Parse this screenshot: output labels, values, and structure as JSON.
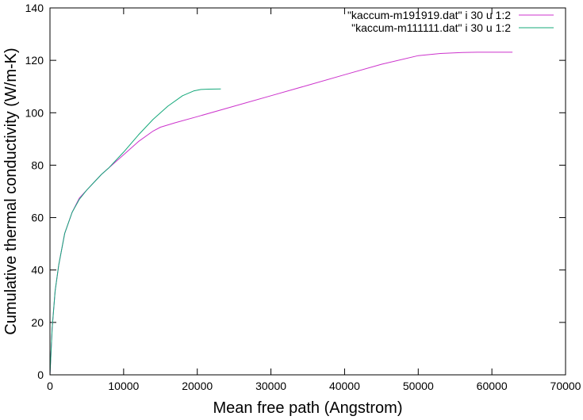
{
  "chart_data": {
    "type": "line",
    "title": "",
    "xlabel": "Mean free path (Angstrom)",
    "ylabel": "Cumulative thermal conductivity (W/m-K)",
    "xlim": [
      0,
      70000
    ],
    "ylim": [
      0,
      140
    ],
    "xticks": [
      0,
      10000,
      20000,
      30000,
      40000,
      50000,
      60000,
      70000
    ],
    "yticks": [
      0,
      20,
      40,
      60,
      80,
      100,
      120,
      140
    ],
    "grid": false,
    "legend_position": "top-right",
    "series": [
      {
        "name": "\"kaccum-m191919.dat\" i 30 u 1:2",
        "color": "#cc33cc",
        "x": [
          0,
          300,
          700,
          1200,
          2000,
          3000,
          4000,
          5000,
          6000,
          7000,
          8000,
          10000,
          12000,
          14000,
          15000,
          17000,
          20000,
          25000,
          30000,
          35000,
          40000,
          45000,
          50000,
          53000,
          56000,
          58000,
          60000,
          62800
        ],
        "y": [
          0,
          18,
          32,
          42,
          54,
          62,
          67.5,
          70.5,
          73.5,
          76.5,
          79,
          84,
          89,
          93,
          94.5,
          96.2,
          98.5,
          102.5,
          106.5,
          110.5,
          114.5,
          118.5,
          121.8,
          122.6,
          123,
          123.1,
          123.1,
          123.1
        ]
      },
      {
        "name": "\"kaccum-m111111.dat\" i 30 u 1:2",
        "color": "#14a87a",
        "x": [
          0,
          300,
          700,
          1200,
          2000,
          3000,
          4000,
          5000,
          6000,
          7000,
          8000,
          10000,
          12000,
          14000,
          16000,
          18000,
          19500,
          20500,
          21500,
          23200
        ],
        "y": [
          0,
          18,
          32,
          42,
          54,
          62,
          67,
          70.5,
          73.5,
          76.5,
          79,
          85,
          91.5,
          97.5,
          102.5,
          106.5,
          108.3,
          108.9,
          109,
          109.1
        ]
      }
    ]
  }
}
